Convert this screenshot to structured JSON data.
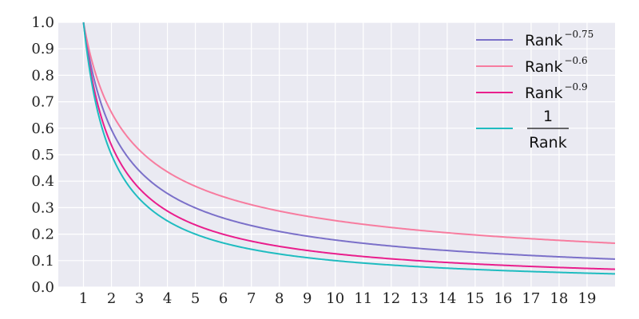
{
  "chart_data": {
    "type": "line",
    "title": "",
    "xlabel": "",
    "ylabel": "",
    "xlim": [
      0.1,
      20
    ],
    "ylim": [
      0,
      1
    ],
    "grid": true,
    "background": "#eaeaf2",
    "legend_placement": "top-right",
    "x_ticks": [
      "1",
      "2",
      "3",
      "4",
      "5",
      "6",
      "7",
      "8",
      "9",
      "10",
      "11",
      "12",
      "13",
      "14",
      "15",
      "16",
      "17",
      "18",
      "19"
    ],
    "y_ticks": [
      "0.0",
      "0.1",
      "0.2",
      "0.3",
      "0.4",
      "0.5",
      "0.6",
      "0.7",
      "0.8",
      "0.9",
      "1.0"
    ],
    "x": [
      1,
      2,
      3,
      4,
      5,
      6,
      7,
      8,
      9,
      10,
      11,
      12,
      13,
      14,
      15,
      16,
      17,
      18,
      19,
      20
    ],
    "series": [
      {
        "name_base": "Rank",
        "name_exponent": "−0.75",
        "formula": "Rank^-0.75",
        "color": "#7b70c9",
        "values": [
          1.0,
          0.595,
          0.439,
          0.354,
          0.299,
          0.261,
          0.232,
          0.21,
          0.192,
          0.178,
          0.166,
          0.155,
          0.146,
          0.138,
          0.131,
          0.125,
          0.119,
          0.115,
          0.11,
          0.106
        ]
      },
      {
        "name_base": "Rank",
        "name_exponent": "−0.6",
        "formula": "Rank^-0.6",
        "color": "#f77c9f",
        "values": [
          1.0,
          0.66,
          0.517,
          0.435,
          0.381,
          0.341,
          0.311,
          0.287,
          0.268,
          0.251,
          0.237,
          0.225,
          0.215,
          0.206,
          0.197,
          0.19,
          0.183,
          0.177,
          0.171,
          0.166
        ]
      },
      {
        "name_base": "Rank",
        "name_exponent": "−0.9",
        "formula": "Rank^-0.9",
        "color": "#e91e8c",
        "values": [
          1.0,
          0.536,
          0.372,
          0.287,
          0.235,
          0.199,
          0.174,
          0.154,
          0.138,
          0.126,
          0.116,
          0.107,
          0.099,
          0.093,
          0.087,
          0.082,
          0.078,
          0.074,
          0.071,
          0.067
        ]
      },
      {
        "name_numerator": "1",
        "name_denominator": "Rank",
        "formula": "1/Rank",
        "color": "#1fbcc0",
        "values": [
          1.0,
          0.5,
          0.333,
          0.25,
          0.2,
          0.167,
          0.143,
          0.125,
          0.111,
          0.1,
          0.091,
          0.083,
          0.077,
          0.071,
          0.067,
          0.063,
          0.059,
          0.056,
          0.053,
          0.05
        ]
      }
    ]
  }
}
